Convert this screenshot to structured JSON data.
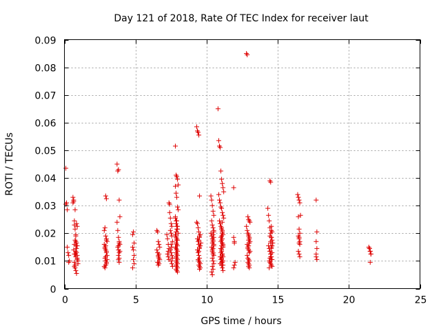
{
  "chart_data": {
    "type": "scatter",
    "title": "Day 121 of 2018, Rate Of TEC Index for receiver laut",
    "xlabel": "GPS time / hours",
    "ylabel": "ROTI / TECUs",
    "xlim": [
      0,
      25
    ],
    "ylim": [
      0,
      0.09
    ],
    "x_ticks": [
      0,
      5,
      10,
      15,
      20,
      25
    ],
    "x_tick_labels": [
      "0",
      "5",
      "10",
      "15",
      "20",
      "25"
    ],
    "y_ticks": [
      0,
      0.01,
      0.02,
      0.03,
      0.04,
      0.05,
      0.06,
      0.07,
      0.08,
      0.09
    ],
    "y_tick_labels": [
      "0",
      "0.01",
      "0.02",
      "0.03",
      "0.04",
      "0.05",
      "0.06",
      "0.07",
      "0.08",
      "0.09"
    ],
    "grid": true,
    "marker": "+",
    "color": "#dd0000",
    "series": [
      {
        "name": "ROTI",
        "x": [
          0.1,
          0.1,
          0.15,
          0.2,
          0.2,
          0.25,
          0.3,
          0.3,
          0.35,
          0.6,
          0.6,
          0.65,
          0.65,
          0.7,
          0.7,
          0.75,
          0.75,
          0.8,
          0.8,
          0.8,
          0.85,
          0.85,
          0.9,
          0.9,
          0.95,
          0.95,
          0.7,
          0.75,
          0.8,
          0.85,
          0.65,
          0.7,
          0.75,
          0.8,
          0.9,
          0.7,
          0.75,
          0.8,
          0.9,
          0.85,
          0.75,
          0.8,
          0.9,
          0.85,
          0.7,
          2.8,
          2.85,
          2.9,
          2.95,
          3.0,
          2.8,
          2.85,
          2.9,
          2.95,
          3.0,
          2.85,
          2.9,
          2.95,
          2.8,
          2.85,
          2.9,
          2.95,
          3.0,
          2.9,
          2.95,
          2.85,
          2.9,
          2.95,
          2.9,
          2.95,
          3.7,
          3.75,
          3.8,
          3.85,
          3.9,
          3.7,
          3.75,
          3.8,
          3.85,
          3.9,
          3.75,
          3.8,
          3.85,
          3.8,
          3.85,
          3.8,
          3.85,
          3.8,
          3.85,
          3.9,
          4.8,
          4.85,
          4.9,
          4.8,
          4.85,
          4.9,
          4.85,
          4.9,
          4.8,
          6.5,
          6.55,
          6.6,
          6.65,
          6.7,
          6.5,
          6.55,
          6.6,
          6.65,
          6.7,
          6.55,
          6.6,
          6.65,
          6.6,
          6.65,
          6.6,
          7.2,
          7.25,
          7.3,
          7.35,
          7.25,
          7.3,
          7.35,
          7.3,
          7.35,
          7.4,
          7.4,
          7.45,
          7.5,
          7.55,
          7.45,
          7.5,
          7.55,
          7.6,
          7.5,
          7.55,
          7.45,
          7.5,
          7.55,
          7.6,
          7.5,
          7.55,
          7.6,
          7.8,
          7.85,
          7.9,
          7.95,
          8.0,
          7.8,
          7.85,
          7.9,
          7.95,
          8.0,
          7.8,
          7.85,
          7.9,
          7.95,
          8.0,
          7.85,
          7.9,
          7.95,
          7.85,
          7.9,
          7.95,
          7.8,
          7.85,
          7.9,
          7.95,
          7.85,
          7.9,
          7.95,
          7.85,
          7.9,
          7.95,
          7.85,
          7.9,
          7.95,
          7.85,
          7.9,
          7.95,
          7.85,
          7.9,
          7.95,
          7.9,
          7.85,
          7.8,
          7.85,
          7.9,
          7.95,
          7.85,
          7.9,
          7.8,
          9.3,
          9.35,
          9.4,
          9.45,
          9.5,
          9.3,
          9.35,
          9.4,
          9.45,
          9.5,
          9.35,
          9.4,
          9.45,
          9.5,
          9.35,
          9.4,
          9.45,
          9.5,
          9.4,
          9.45,
          9.5,
          9.55,
          9.45,
          9.5,
          9.55,
          9.5,
          9.45,
          9.5,
          9.55,
          9.6,
          9.45,
          9.5,
          9.55,
          10.3,
          10.35,
          10.4,
          10.45,
          10.5,
          10.35,
          10.4,
          10.45,
          10.5,
          10.3,
          10.35,
          10.4,
          10.45,
          10.5,
          10.35,
          10.4,
          10.45,
          10.5,
          10.4,
          10.45,
          10.5,
          10.4,
          10.45,
          10.35,
          10.4,
          10.45,
          10.4,
          10.45,
          10.5,
          10.4,
          10.45,
          10.5,
          10.45,
          10.5,
          10.8,
          10.85,
          10.9,
          10.95,
          11.0,
          11.05,
          11.1,
          11.15,
          11.2,
          10.85,
          10.9,
          10.95,
          11.0,
          11.05,
          11.1,
          11.15,
          11.2,
          10.9,
          10.95,
          11.0,
          11.05,
          11.1,
          11.15,
          11.0,
          11.05,
          11.1,
          11.15,
          11.0,
          11.05,
          11.1,
          11.15,
          11.05,
          11.1,
          11.15,
          11.1,
          11.15,
          11.1,
          11.15,
          11.05,
          11.1,
          11.15,
          11.05,
          11.1,
          11.15,
          11.0,
          11.05,
          10.95,
          11.0,
          11.05,
          11.1,
          11.0,
          11.05,
          11.1,
          10.95,
          11.0,
          11.05,
          11.05,
          11.1,
          11.9,
          11.9,
          11.95,
          11.95,
          12.0,
          11.95,
          11.9,
          12.8,
          12.85,
          12.9,
          12.95,
          13.0,
          13.05,
          12.8,
          12.85,
          12.9,
          12.95,
          13.0,
          13.05,
          12.85,
          12.9,
          12.95,
          13.0,
          12.85,
          12.9,
          12.95,
          13.0,
          12.9,
          12.95,
          13.0,
          12.95,
          13.0,
          13.05,
          12.9,
          12.95,
          13.0,
          12.95,
          13.0,
          12.95,
          14.3,
          14.35,
          14.4,
          14.45,
          14.5,
          14.55,
          14.6,
          14.65,
          14.35,
          14.4,
          14.45,
          14.5,
          14.55,
          14.6,
          14.4,
          14.45,
          14.5,
          14.55,
          14.6,
          14.4,
          14.45,
          14.5,
          14.55,
          14.45,
          14.5,
          14.55,
          14.6,
          14.45,
          14.5,
          14.55,
          14.5,
          14.55,
          14.6,
          14.55,
          14.6,
          14.45,
          14.5,
          14.55,
          16.4,
          16.45,
          16.5,
          16.55,
          16.6,
          16.45,
          16.5,
          16.55,
          16.45,
          16.5,
          16.55,
          16.5,
          16.55,
          16.45,
          16.5,
          16.55,
          16.5,
          17.7,
          17.75,
          17.7,
          17.75,
          17.7,
          17.7,
          17.75,
          21.4,
          21.45,
          21.5,
          21.55,
          21.45,
          21.5,
          21.55,
          21.5
        ],
        "y": [
          0.0435,
          0.0305,
          0.031,
          0.0285,
          0.015,
          0.013,
          0.012,
          0.0095,
          0.01,
          0.031,
          0.033,
          0.0315,
          0.032,
          0.0245,
          0.023,
          0.0285,
          0.0215,
          0.0195,
          0.017,
          0.0155,
          0.0145,
          0.013,
          0.012,
          0.011,
          0.01,
          0.009,
          0.008,
          0.0075,
          0.0065,
          0.0055,
          0.014,
          0.016,
          0.0125,
          0.0115,
          0.0105,
          0.0095,
          0.0085,
          0.0135,
          0.0155,
          0.0165,
          0.0175,
          0.019,
          0.0225,
          0.0235,
          0.0125,
          0.021,
          0.022,
          0.019,
          0.018,
          0.017,
          0.016,
          0.015,
          0.014,
          0.013,
          0.012,
          0.011,
          0.01,
          0.009,
          0.008,
          0.0075,
          0.0085,
          0.0095,
          0.0105,
          0.0115,
          0.0135,
          0.0145,
          0.0155,
          0.0175,
          0.0335,
          0.0325,
          0.045,
          0.0425,
          0.043,
          0.032,
          0.026,
          0.024,
          0.021,
          0.0185,
          0.017,
          0.016,
          0.015,
          0.014,
          0.013,
          0.012,
          0.011,
          0.0105,
          0.0095,
          0.0155,
          0.0165,
          0.0135,
          0.0195,
          0.0205,
          0.0165,
          0.015,
          0.014,
          0.012,
          0.0105,
          0.009,
          0.0075,
          0.021,
          0.0205,
          0.017,
          0.016,
          0.015,
          0.014,
          0.013,
          0.012,
          0.011,
          0.0105,
          0.0095,
          0.0095,
          0.009,
          0.0085,
          0.0125,
          0.0115,
          0.0195,
          0.018,
          0.016,
          0.0145,
          0.0125,
          0.0115,
          0.0105,
          0.0135,
          0.031,
          0.0305,
          0.0275,
          0.0255,
          0.0235,
          0.0225,
          0.021,
          0.02,
          0.019,
          0.017,
          0.016,
          0.015,
          0.014,
          0.013,
          0.012,
          0.011,
          0.01,
          0.009,
          0.008,
          0.0515,
          0.041,
          0.0405,
          0.0395,
          0.0375,
          0.037,
          0.0345,
          0.033,
          0.0295,
          0.0285,
          0.0255,
          0.0245,
          0.0225,
          0.0215,
          0.02,
          0.019,
          0.018,
          0.0175,
          0.0165,
          0.016,
          0.0155,
          0.015,
          0.0145,
          0.014,
          0.0135,
          0.013,
          0.0125,
          0.012,
          0.0115,
          0.011,
          0.0105,
          0.01,
          0.0095,
          0.009,
          0.0085,
          0.008,
          0.0075,
          0.007,
          0.0065,
          0.006,
          0.0175,
          0.0185,
          0.0195,
          0.0205,
          0.0215,
          0.0225,
          0.0235,
          0.0245,
          0.026,
          0.0585,
          0.057,
          0.0565,
          0.0555,
          0.0335,
          0.024,
          0.0235,
          0.022,
          0.0205,
          0.019,
          0.018,
          0.017,
          0.016,
          0.015,
          0.014,
          0.013,
          0.012,
          0.011,
          0.0105,
          0.01,
          0.0095,
          0.009,
          0.0085,
          0.008,
          0.0075,
          0.007,
          0.0135,
          0.0145,
          0.0155,
          0.0165,
          0.0175,
          0.0185,
          0.0195,
          0.0335,
          0.032,
          0.03,
          0.028,
          0.0265,
          0.0245,
          0.023,
          0.022,
          0.021,
          0.02,
          0.019,
          0.018,
          0.017,
          0.016,
          0.015,
          0.014,
          0.013,
          0.012,
          0.011,
          0.01,
          0.009,
          0.008,
          0.007,
          0.006,
          0.005,
          0.0125,
          0.0135,
          0.0145,
          0.0155,
          0.0165,
          0.0175,
          0.0185,
          0.0195,
          0.0205,
          0.065,
          0.0535,
          0.0515,
          0.051,
          0.0425,
          0.0395,
          0.038,
          0.0365,
          0.035,
          0.034,
          0.032,
          0.031,
          0.0295,
          0.029,
          0.0275,
          0.0265,
          0.0255,
          0.0245,
          0.0235,
          0.0225,
          0.0215,
          0.0205,
          0.0195,
          0.0185,
          0.0175,
          0.0165,
          0.0155,
          0.0145,
          0.0135,
          0.0125,
          0.0115,
          0.0105,
          0.0095,
          0.0085,
          0.0075,
          0.0065,
          0.018,
          0.016,
          0.014,
          0.012,
          0.01,
          0.022,
          0.02,
          0.015,
          0.013,
          0.011,
          0.009,
          0.017,
          0.019,
          0.021,
          0.0145,
          0.0155,
          0.0125,
          0.0115,
          0.0105,
          0.0095,
          0.0085,
          0.024,
          0.0365,
          0.0185,
          0.017,
          0.0165,
          0.0095,
          0.0085,
          0.0075,
          0.085,
          0.0845,
          0.026,
          0.025,
          0.0245,
          0.024,
          0.0225,
          0.021,
          0.02,
          0.019,
          0.018,
          0.017,
          0.016,
          0.015,
          0.014,
          0.013,
          0.012,
          0.011,
          0.0105,
          0.01,
          0.0095,
          0.009,
          0.0085,
          0.008,
          0.0075,
          0.0135,
          0.0145,
          0.0155,
          0.0165,
          0.0175,
          0.0185,
          0.0195,
          0.029,
          0.0265,
          0.0245,
          0.022,
          0.02,
          0.0185,
          0.0175,
          0.0165,
          0.0155,
          0.0145,
          0.0135,
          0.0125,
          0.0115,
          0.0105,
          0.01,
          0.0095,
          0.009,
          0.0085,
          0.008,
          0.0075,
          0.039,
          0.0385,
          0.021,
          0.019,
          0.017,
          0.015,
          0.013,
          0.011,
          0.0125,
          0.0145,
          0.0165,
          0.0185,
          0.0205,
          0.0225,
          0.0155,
          0.0135,
          0.0115,
          0.0105,
          0.034,
          0.033,
          0.032,
          0.031,
          0.0265,
          0.026,
          0.0215,
          0.02,
          0.019,
          0.018,
          0.017,
          0.0165,
          0.016,
          0.0135,
          0.0125,
          0.0115,
          0.0185,
          0.032,
          0.0205,
          0.017,
          0.0145,
          0.0125,
          0.0115,
          0.0105,
          0.015,
          0.0145,
          0.0135,
          0.0125,
          0.0145,
          0.0135,
          0.0125,
          0.0095
        ]
      }
    ]
  }
}
